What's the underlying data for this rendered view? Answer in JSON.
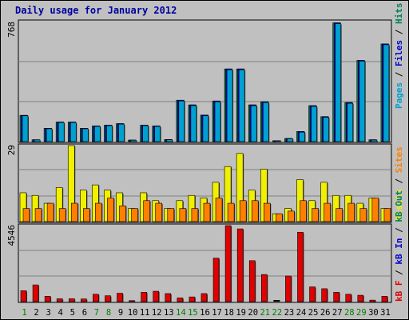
{
  "title": "Daily usage for January 2012",
  "colors": {
    "pages": "#00a0d0",
    "files": "#0000d0",
    "hits": "#00805a",
    "visits": "#f0f000",
    "sites": "#ff8000",
    "kb_out": "#00805a",
    "kb_in": "#0000d0",
    "kb_f": "#e00000",
    "weekend_label": "#008000",
    "weekday_label": "#000000",
    "background": "#c0c0c0"
  },
  "chart_data": [
    {
      "type": "bar",
      "panel": "hits-files-pages",
      "ymax_label": "768",
      "ylim": [
        0,
        768
      ],
      "categories": [
        "1",
        "2",
        "3",
        "4",
        "5",
        "6",
        "7",
        "8",
        "9",
        "10",
        "11",
        "12",
        "13",
        "14",
        "15",
        "16",
        "17",
        "18",
        "19",
        "20",
        "21",
        "22",
        "23",
        "24",
        "25",
        "26",
        "27",
        "28",
        "29",
        "30",
        "31"
      ],
      "weekend_days": [
        "1",
        "7",
        "8",
        "14",
        "15",
        "21",
        "22",
        "28",
        "29"
      ],
      "legend": [
        {
          "name": "Pages",
          "color": "#00a0d0"
        },
        {
          "name": "Files",
          "color": "#0000d0"
        },
        {
          "name": "Hits",
          "color": "#00805a"
        }
      ],
      "series": [
        {
          "name": "Hits",
          "values": [
            168,
            12,
            85,
            125,
            125,
            85,
            100,
            105,
            115,
            10,
            105,
            100,
            13,
            265,
            235,
            170,
            260,
            465,
            465,
            235,
            255,
            6,
            20,
            65,
            230,
            160,
            760,
            250,
            520,
            12,
            625
          ]
        },
        {
          "name": "Files",
          "values": [
            168,
            12,
            85,
            125,
            125,
            85,
            100,
            105,
            115,
            10,
            105,
            100,
            13,
            265,
            235,
            170,
            260,
            465,
            465,
            235,
            255,
            6,
            20,
            65,
            230,
            160,
            760,
            250,
            520,
            12,
            625
          ]
        },
        {
          "name": "Pages",
          "values": [
            165,
            11,
            82,
            122,
            122,
            82,
            97,
            102,
            112,
            9,
            102,
            97,
            12,
            260,
            230,
            165,
            255,
            460,
            460,
            230,
            250,
            5,
            18,
            60,
            225,
            155,
            755,
            245,
            515,
            10,
            620
          ]
        }
      ]
    },
    {
      "type": "bar",
      "panel": "visits-sites",
      "ymax_label": "29",
      "ylim": [
        0,
        29
      ],
      "categories": [
        "1",
        "2",
        "3",
        "4",
        "5",
        "6",
        "7",
        "8",
        "9",
        "10",
        "11",
        "12",
        "13",
        "14",
        "15",
        "16",
        "17",
        "18",
        "19",
        "20",
        "21",
        "22",
        "23",
        "24",
        "25",
        "26",
        "27",
        "28",
        "29",
        "30",
        "31"
      ],
      "legend": [
        {
          "name": "Visits",
          "color": "#f0f000"
        },
        {
          "name": "Sites",
          "color": "#ff8000"
        }
      ],
      "series": [
        {
          "name": "Visits",
          "values": [
            11,
            10,
            7,
            13,
            29,
            12,
            14,
            12,
            11,
            5,
            11,
            8,
            5,
            8,
            10,
            9,
            15,
            21,
            26,
            12,
            20,
            3,
            5,
            16,
            8,
            15,
            10,
            10,
            7,
            9,
            5
          ]
        },
        {
          "name": "Sites",
          "values": [
            5,
            5,
            7,
            5,
            7,
            5,
            7,
            9,
            6,
            5,
            8,
            7,
            5,
            5,
            5,
            7,
            9,
            7,
            8,
            8,
            7,
            3,
            4,
            8,
            5,
            7,
            5,
            7,
            5,
            9,
            5
          ]
        }
      ]
    },
    {
      "type": "bar",
      "panel": "kbytes",
      "ymax_label": "4546",
      "ylim": [
        0,
        4546
      ],
      "categories": [
        "1",
        "2",
        "3",
        "4",
        "5",
        "6",
        "7",
        "8",
        "9",
        "10",
        "11",
        "12",
        "13",
        "14",
        "15",
        "16",
        "17",
        "18",
        "19",
        "20",
        "21",
        "22",
        "23",
        "24",
        "25",
        "26",
        "27",
        "28",
        "29",
        "30",
        "31"
      ],
      "legend": [
        {
          "name": "kB F",
          "color": "#e00000"
        },
        {
          "name": "kB In",
          "color": "#0000d0"
        },
        {
          "name": "kB Out",
          "color": "#00805a"
        }
      ],
      "series": [
        {
          "name": "kB F",
          "values": [
            650,
            1000,
            320,
            170,
            170,
            160,
            440,
            350,
            500,
            60,
            560,
            620,
            480,
            220,
            280,
            480,
            2600,
            4546,
            4350,
            2450,
            1620,
            0,
            1530,
            4150,
            880,
            770,
            560,
            440,
            380,
            90,
            320
          ]
        }
      ]
    }
  ]
}
